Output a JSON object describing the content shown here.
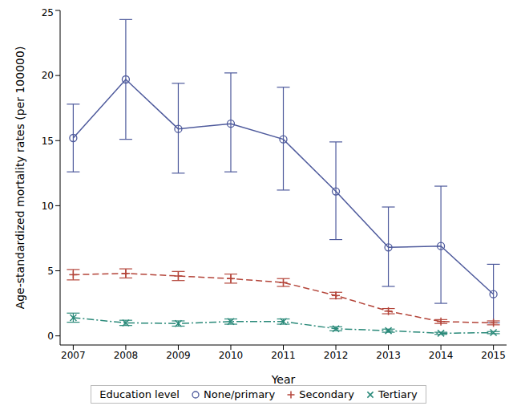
{
  "chart_data": {
    "type": "line",
    "x_label": "Year",
    "y_label": "Age-standardized mortality rates (per 100000)",
    "x": [
      2007,
      2008,
      2009,
      2010,
      2011,
      2012,
      2013,
      2014,
      2015
    ],
    "xlim": [
      2006.75,
      2015.25
    ],
    "xticks": [
      2007,
      2008,
      2009,
      2010,
      2011,
      2012,
      2013,
      2014,
      2015
    ],
    "ylim": [
      -0.7,
      25
    ],
    "yticks": [
      0,
      5,
      10,
      15,
      20,
      25
    ],
    "grid": false,
    "legend": "bottom",
    "legend_title": "Education level",
    "series": [
      {
        "name": "None/primary",
        "color": "#4e5a9c",
        "marker": "circle",
        "line_style": "solid",
        "values": [
          15.2,
          19.7,
          15.9,
          16.3,
          15.1,
          11.1,
          6.8,
          6.9,
          3.2
        ],
        "error_low": [
          12.6,
          15.1,
          12.5,
          12.6,
          11.2,
          7.4,
          3.8,
          2.5,
          1.0
        ],
        "error_high": [
          17.8,
          24.3,
          19.4,
          20.2,
          19.1,
          14.9,
          9.9,
          11.5,
          5.5
        ]
      },
      {
        "name": "Secondary",
        "color": "#b4453a",
        "marker": "plus",
        "line_style": "dashed",
        "values": [
          4.7,
          4.8,
          4.6,
          4.4,
          4.1,
          3.1,
          1.9,
          1.1,
          1.0
        ],
        "error_low": [
          4.3,
          4.45,
          4.25,
          4.05,
          3.8,
          2.85,
          1.7,
          0.95,
          0.85
        ],
        "error_high": [
          5.1,
          5.15,
          4.95,
          4.75,
          4.4,
          3.35,
          2.1,
          1.25,
          1.15
        ]
      },
      {
        "name": "Tertiary",
        "color": "#2b8a7a",
        "marker": "x",
        "line_style": "dashdot",
        "values": [
          1.4,
          1.0,
          0.95,
          1.1,
          1.1,
          0.55,
          0.4,
          0.2,
          0.25
        ],
        "error_low": [
          1.05,
          0.8,
          0.75,
          0.9,
          0.9,
          0.4,
          0.28,
          0.12,
          0.17
        ],
        "error_high": [
          1.75,
          1.2,
          1.15,
          1.3,
          1.3,
          0.7,
          0.52,
          0.28,
          0.33
        ]
      }
    ]
  }
}
